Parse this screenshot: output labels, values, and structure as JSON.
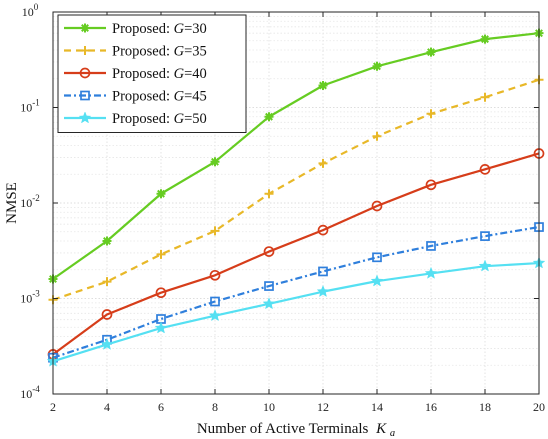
{
  "chart_data": {
    "type": "line",
    "x": [
      2,
      4,
      6,
      8,
      10,
      12,
      14,
      16,
      18,
      20
    ],
    "xlabel": "Number of Active Terminals",
    "xlabel_sub": "K",
    "xlabel_subscript": "a",
    "ylabel": "NMSE",
    "xlim": [
      2,
      20
    ],
    "ylim": [
      0.0001,
      1
    ],
    "yscale": "log",
    "xticks": [
      "2",
      "4",
      "6",
      "8",
      "10",
      "12",
      "14",
      "16",
      "18",
      "20"
    ],
    "yticks": [
      {
        "base": "10",
        "exp": "0"
      },
      {
        "base": "10",
        "exp": "-1"
      },
      {
        "base": "10",
        "exp": "-2"
      },
      {
        "base": "10",
        "exp": "-3"
      },
      {
        "base": "10",
        "exp": "-4"
      }
    ],
    "grid": true,
    "legend_position": "top-left",
    "series": [
      {
        "name": "Proposed: ",
        "name_var": "G",
        "name_val": "=30",
        "color": "#66cc22",
        "linestyle": "solid",
        "marker": "asterisk",
        "values": [
          0.0016,
          0.004,
          0.0125,
          0.027,
          0.08,
          0.17,
          0.27,
          0.38,
          0.52,
          0.6
        ]
      },
      {
        "name": "Proposed: ",
        "name_var": "G",
        "name_val": "=35",
        "color": "#e8b828",
        "linestyle": "dashed",
        "marker": "plus",
        "values": [
          0.00097,
          0.0015,
          0.0029,
          0.0051,
          0.0125,
          0.026,
          0.05,
          0.086,
          0.128,
          0.195
        ]
      },
      {
        "name": "Proposed: ",
        "name_var": "G",
        "name_val": "=40",
        "color": "#d63d1a",
        "linestyle": "solid",
        "marker": "circle",
        "values": [
          0.00026,
          0.00068,
          0.00115,
          0.00175,
          0.0031,
          0.0052,
          0.0093,
          0.0155,
          0.0225,
          0.033
        ]
      },
      {
        "name": "Proposed: ",
        "name_var": "G",
        "name_val": "=45",
        "color": "#2f7fdc",
        "linestyle": "dashdot",
        "marker": "square",
        "values": [
          0.00024,
          0.00037,
          0.00061,
          0.00093,
          0.00135,
          0.00192,
          0.0027,
          0.00355,
          0.0045,
          0.0056
        ]
      },
      {
        "name": "Proposed: ",
        "name_var": "G",
        "name_val": "=50",
        "color": "#55e0f2",
        "linestyle": "solid",
        "marker": "star",
        "values": [
          0.00022,
          0.00033,
          0.00049,
          0.00066,
          0.00088,
          0.00118,
          0.00152,
          0.00183,
          0.00218,
          0.00235
        ]
      }
    ]
  }
}
